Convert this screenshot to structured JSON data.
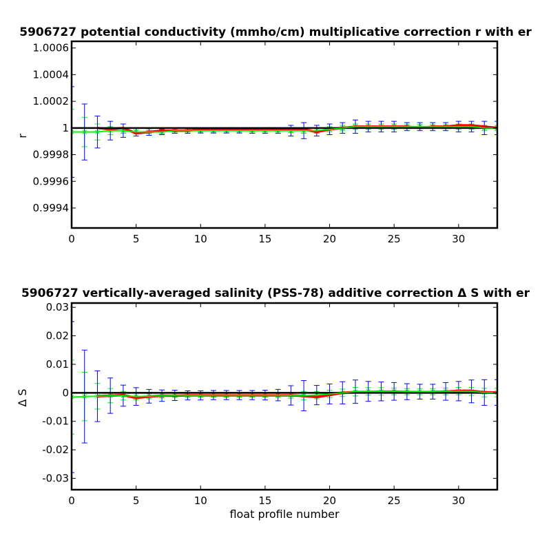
{
  "chart_data": [
    {
      "type": "line",
      "title": "5906727 potential conductivity (mmho/cm) multiplicative correction r with er",
      "xlabel": "",
      "ylabel": "r",
      "xlim": [
        0,
        33
      ],
      "ylim": [
        0.99925,
        1.00065
      ],
      "x_ticks": [
        0,
        5,
        10,
        15,
        20,
        25,
        30
      ],
      "y_ticks": [
        0.9994,
        0.9996,
        0.9998,
        1,
        1.0002,
        1.0004,
        1.0006
      ],
      "y_tick_labels": [
        "0.9994",
        "0.9996",
        "0.9998",
        "1",
        "1.0002",
        "1.0004",
        "1.0006"
      ],
      "reference_line": 1,
      "colors": {
        "reference": "#000000",
        "fit": "#ff0000",
        "green": "#00ff00",
        "blue": "#0000ff",
        "fit_band": "#ff0000"
      },
      "series": [
        {
          "style": "green-error-bars",
          "x": [
            0,
            1,
            2,
            3,
            4,
            5,
            6,
            7,
            8,
            9,
            10,
            11,
            12,
            13,
            14,
            15,
            16,
            17,
            18,
            19,
            20,
            21,
            22,
            23,
            24,
            25,
            26,
            27,
            28,
            29,
            30,
            31,
            32,
            33
          ],
          "y": [
            0.99997,
            0.99997,
            0.99997,
            0.99998,
            0.99998,
            0.99997,
            0.99997,
            0.99997,
            0.99998,
            0.99998,
            0.99998,
            0.99998,
            0.99998,
            0.99998,
            0.99998,
            0.99998,
            0.99998,
            0.99998,
            0.99998,
            0.99998,
            0.99999,
            1.0,
            1.00001,
            1.00001,
            1.00001,
            1.00001,
            1.00001,
            1.00001,
            1.00001,
            1.00001,
            1.00001,
            1.00001,
            1.0,
            1.0
          ],
          "err": [
            0.00017,
            0.00011,
            6e-05,
            3e-05,
            2e-05,
            1.5e-05,
            1e-05,
            1e-05,
            1e-05,
            1e-05,
            1e-05,
            1e-05,
            1e-05,
            1e-05,
            1e-05,
            1e-05,
            1e-05,
            1.5e-05,
            2e-05,
            2e-05,
            2e-05,
            2e-05,
            2e-05,
            2e-05,
            2e-05,
            2e-05,
            1.5e-05,
            1.5e-05,
            1.5e-05,
            1.5e-05,
            2e-05,
            2e-05,
            2e-05,
            2e-05
          ]
        },
        {
          "style": "blue-error-bars",
          "x": [
            0,
            1,
            2,
            3,
            4,
            5,
            6,
            7,
            8,
            9,
            10,
            11,
            12,
            13,
            14,
            15,
            16,
            17,
            18,
            19,
            20,
            21,
            22,
            23,
            24,
            25,
            26,
            27,
            28,
            29,
            30,
            31,
            32,
            33
          ],
          "y": [
            0.99997,
            0.99997,
            0.99997,
            0.99998,
            0.99998,
            0.99997,
            0.99997,
            0.99997,
            0.99998,
            0.99998,
            0.99998,
            0.99998,
            0.99998,
            0.99998,
            0.99998,
            0.99998,
            0.99998,
            0.99998,
            0.99998,
            0.99998,
            0.99999,
            1.0,
            1.00001,
            1.00001,
            1.00001,
            1.00001,
            1.00001,
            1.00001,
            1.00001,
            1.00001,
            1.00001,
            1.00001,
            1.0,
            1.0
          ],
          "err": [
            0.00034,
            0.00021,
            0.00012,
            7e-05,
            5e-05,
            3e-05,
            2.5e-05,
            2e-05,
            2e-05,
            2e-05,
            1.8e-05,
            1.8e-05,
            1.8e-05,
            1.8e-05,
            2e-05,
            2e-05,
            2e-05,
            4e-05,
            6e-05,
            4e-05,
            4e-05,
            4e-05,
            5e-05,
            4e-05,
            4e-05,
            4e-05,
            3e-05,
            3e-05,
            3e-05,
            3e-05,
            4e-05,
            4e-05,
            5e-05,
            5e-05
          ]
        },
        {
          "style": "red-fit",
          "x": [
            2,
            3,
            4,
            5,
            6,
            7,
            8,
            9,
            10,
            11,
            12,
            13,
            14,
            15,
            16,
            17,
            18,
            19,
            20,
            21,
            22,
            23,
            24,
            25,
            26,
            27,
            28,
            29,
            30,
            31,
            32,
            33
          ],
          "y": [
            1.0,
            0.99999,
            1.0,
            0.99996,
            0.99997,
            0.99998,
            0.99998,
            0.99998,
            0.99999,
            0.99999,
            0.99999,
            0.99999,
            0.99999,
            0.99999,
            0.99999,
            0.99999,
            0.99999,
            0.99997,
            0.99999,
            1.0,
            1.00001,
            1.00001,
            1.00001,
            1.00001,
            1.00001,
            1.0,
            1.00001,
            1.00001,
            1.00002,
            1.00002,
            1.00001,
            1.0
          ]
        }
      ]
    },
    {
      "type": "line",
      "title": "5906727 vertically-averaged salinity (PSS-78) additive correction Δ S with er",
      "xlabel": "float profile number",
      "ylabel": "Δ S",
      "xlim": [
        0,
        33
      ],
      "ylim": [
        -0.034,
        0.0315
      ],
      "x_ticks": [
        0,
        5,
        10,
        15,
        20,
        25,
        30
      ],
      "y_ticks": [
        -0.03,
        -0.02,
        -0.01,
        0,
        0.01,
        0.02,
        0.03
      ],
      "y_tick_labels": [
        "-0.03",
        "-0.02",
        "-0.01",
        "0",
        "0.01",
        "0.02",
        "0.03"
      ],
      "reference_line": 0,
      "colors": {
        "reference": "#000000",
        "fit": "#ff0000",
        "green": "#00ff00",
        "blue": "#0000ff",
        "fit_band": "#ff0000"
      },
      "series": [
        {
          "style": "green-error-bars",
          "x": [
            0,
            1,
            2,
            3,
            4,
            5,
            6,
            7,
            8,
            9,
            10,
            11,
            12,
            13,
            14,
            15,
            16,
            17,
            18,
            19,
            20,
            21,
            22,
            23,
            24,
            25,
            26,
            27,
            28,
            29,
            30,
            31,
            32,
            33
          ],
          "y": [
            -0.0015,
            -0.0013,
            -0.0012,
            -0.001,
            -0.001,
            -0.0013,
            -0.0012,
            -0.001,
            -0.0009,
            -0.0009,
            -0.0009,
            -0.0008,
            -0.0008,
            -0.0008,
            -0.0008,
            -0.0008,
            -0.0008,
            -0.0009,
            -0.001,
            -0.0008,
            -0.0004,
            0.0,
            0.0004,
            0.0005,
            0.0005,
            0.0005,
            0.0004,
            0.0004,
            0.0004,
            0.0005,
            0.0006,
            0.0005,
            0.0001,
            0.0001
          ],
          "err": [
            0.013,
            0.0085,
            0.0045,
            0.0025,
            0.0015,
            0.0012,
            0.0009,
            0.0008,
            0.0007,
            0.0007,
            0.0007,
            0.0007,
            0.0007,
            0.0007,
            0.0007,
            0.0007,
            0.0008,
            0.001,
            0.0015,
            0.0013,
            0.0013,
            0.0013,
            0.0015,
            0.0013,
            0.0013,
            0.0012,
            0.0011,
            0.0011,
            0.0011,
            0.0012,
            0.0013,
            0.0014,
            0.0015,
            0.0015
          ]
        },
        {
          "style": "blue-error-bars",
          "x": [
            0,
            1,
            2,
            3,
            4,
            5,
            6,
            7,
            8,
            9,
            10,
            11,
            12,
            13,
            14,
            15,
            16,
            17,
            18,
            19,
            20,
            21,
            22,
            23,
            24,
            25,
            26,
            27,
            28,
            29,
            30,
            31,
            32,
            33
          ],
          "y": [
            -0.0015,
            -0.0013,
            -0.0012,
            -0.001,
            -0.001,
            -0.0013,
            -0.0012,
            -0.001,
            -0.0009,
            -0.0009,
            -0.0009,
            -0.0008,
            -0.0008,
            -0.0008,
            -0.0008,
            -0.0008,
            -0.0008,
            -0.0009,
            -0.001,
            -0.0008,
            -0.0004,
            0.0,
            0.0004,
            0.0005,
            0.0005,
            0.0005,
            0.0004,
            0.0004,
            0.0004,
            0.0005,
            0.0006,
            0.0005,
            0.0001,
            0.0001
          ],
          "err": [
            0.0265,
            0.0163,
            0.0089,
            0.0062,
            0.0037,
            0.0031,
            0.0024,
            0.002,
            0.0018,
            0.0016,
            0.0016,
            0.0016,
            0.0016,
            0.0016,
            0.0016,
            0.0017,
            0.002,
            0.0034,
            0.0053,
            0.0034,
            0.0035,
            0.0039,
            0.0041,
            0.0035,
            0.0033,
            0.0031,
            0.0028,
            0.0026,
            0.0026,
            0.0031,
            0.0034,
            0.004,
            0.0045,
            0.0045
          ]
        },
        {
          "style": "red-fit",
          "x": [
            2,
            3,
            4,
            5,
            6,
            7,
            8,
            9,
            10,
            11,
            12,
            13,
            14,
            15,
            16,
            17,
            18,
            19,
            20,
            21,
            22,
            23,
            24,
            25,
            26,
            27,
            28,
            29,
            30,
            31,
            32,
            33
          ],
          "y": [
            -0.0012,
            -0.001,
            -0.0008,
            -0.0018,
            -0.0013,
            -0.001,
            -0.001,
            -0.0009,
            -0.0009,
            -0.0009,
            -0.0009,
            -0.0009,
            -0.0009,
            -0.0009,
            -0.0009,
            -0.0009,
            -0.0011,
            -0.0015,
            -0.0008,
            0.0,
            0.0003,
            0.0003,
            0.0004,
            0.0004,
            0.0003,
            0.0002,
            0.0003,
            0.0004,
            0.0007,
            0.0007,
            0.0002,
            0.0001
          ]
        }
      ]
    }
  ]
}
